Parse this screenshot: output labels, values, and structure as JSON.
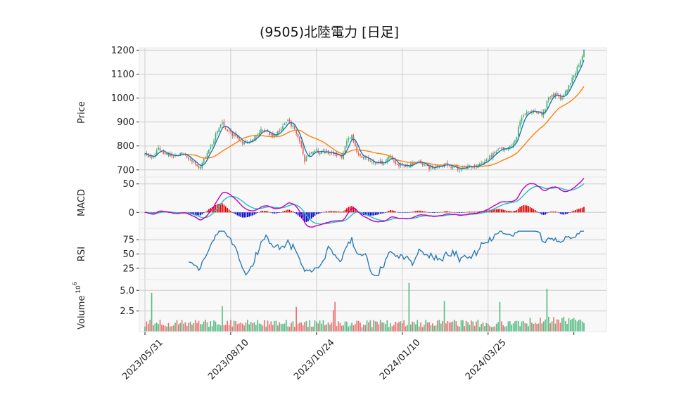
{
  "chart_data": {
    "type": "candlestick",
    "title": "(9505)北陸電力 [日足]",
    "x_tick_labels": [
      "2023/05/31",
      "2023/08/10",
      "2023/10/24",
      "2024/01/10",
      "2024/03/25"
    ],
    "panels": {
      "price": {
        "ylabel": "Price",
        "yticks": [
          700,
          800,
          900,
          1000,
          1100,
          1200
        ],
        "ylim": [
          670,
          1210
        ],
        "anchors": [
          [
            0,
            775
          ],
          [
            4,
            748
          ],
          [
            8,
            790
          ],
          [
            12,
            770
          ],
          [
            16,
            760
          ],
          [
            22,
            768
          ],
          [
            28,
            740
          ],
          [
            32,
            705
          ],
          [
            38,
            780
          ],
          [
            43,
            860
          ],
          [
            46,
            895
          ],
          [
            50,
            860
          ],
          [
            55,
            830
          ],
          [
            60,
            810
          ],
          [
            65,
            835
          ],
          [
            70,
            870
          ],
          [
            75,
            845
          ],
          [
            80,
            860
          ],
          [
            85,
            905
          ],
          [
            88,
            880
          ],
          [
            92,
            820
          ],
          [
            95,
            740
          ],
          [
            100,
            780
          ],
          [
            106,
            775
          ],
          [
            112,
            770
          ],
          [
            117,
            755
          ],
          [
            120,
            815
          ],
          [
            123,
            840
          ],
          [
            126,
            770
          ],
          [
            130,
            750
          ],
          [
            136,
            735
          ],
          [
            142,
            730
          ],
          [
            145,
            760
          ],
          [
            150,
            720
          ],
          [
            156,
            718
          ],
          [
            162,
            735
          ],
          [
            168,
            710
          ],
          [
            174,
            715
          ],
          [
            180,
            725
          ],
          [
            186,
            700
          ],
          [
            190,
            715
          ],
          [
            196,
            712
          ],
          [
            202,
            730
          ],
          [
            208,
            775
          ],
          [
            212,
            790
          ],
          [
            216,
            790
          ],
          [
            220,
            820
          ],
          [
            224,
            925
          ],
          [
            228,
            940
          ],
          [
            232,
            950
          ],
          [
            236,
            925
          ],
          [
            240,
            1000
          ],
          [
            244,
            1015
          ],
          [
            248,
            1000
          ],
          [
            252,
            1050
          ],
          [
            256,
            1110
          ],
          [
            259,
            1160
          ],
          [
            261,
            1195
          ]
        ],
        "sma_short": {
          "color": "#1f77b4",
          "period": 5
        },
        "sma_long": {
          "color": "#ff7f0e",
          "period": 25
        },
        "up_color": "#3cb371",
        "down_color": "#e85a5a"
      },
      "macd": {
        "ylabel": "MACD",
        "yticks": [
          0,
          50
        ],
        "ylim": [
          -28,
          62
        ],
        "macd_color": "#c000c0",
        "signal_color": "#20c0c0",
        "hist_pos_color": "#dd0000",
        "hist_neg_color": "#0000cc"
      },
      "rsi": {
        "ylabel": "RSI",
        "yticks": [
          25,
          50,
          75
        ],
        "ylim": [
          5,
          95
        ],
        "color": "#2c7bb6",
        "period": 14
      },
      "volume": {
        "ylabel": "Volume",
        "ylabel_exp": "6",
        "yticks": [
          2.5,
          5.0
        ],
        "ylim": [
          0,
          6.3
        ],
        "unit": "10^6",
        "spikes": [
          [
            4,
            4.7
          ],
          [
            46,
            3.1
          ],
          [
            90,
            3.0
          ],
          [
            112,
            2.6
          ],
          [
            113,
            3.6
          ],
          [
            157,
            5.9
          ],
          [
            178,
            3.7
          ],
          [
            211,
            3.6
          ],
          [
            239,
            5.2
          ]
        ]
      }
    },
    "n_days": 262,
    "grid": true
  }
}
